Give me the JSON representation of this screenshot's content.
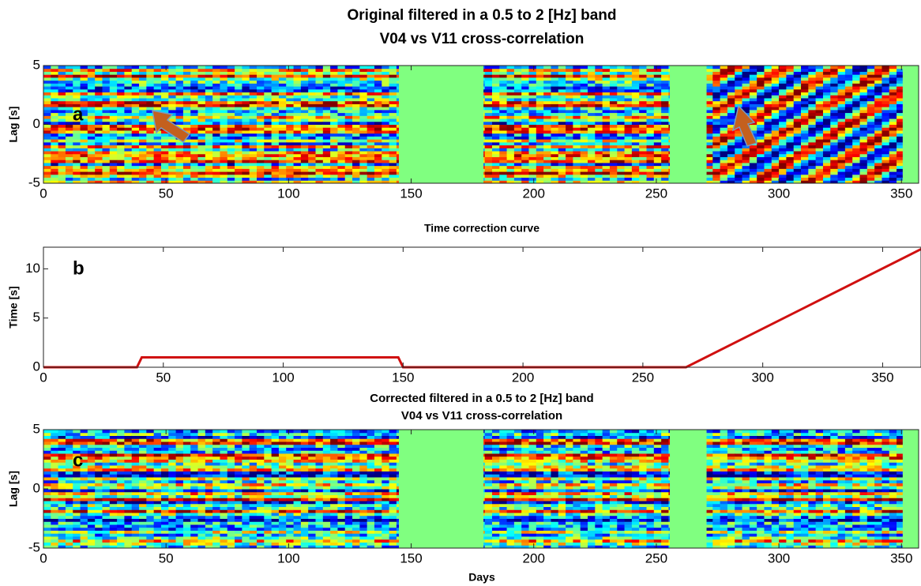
{
  "chart_data": [
    {
      "type": "heatmap",
      "title": [
        "Original filtered in a 0.5 to 2 [Hz] band",
        "V04 vs V11 cross-correlation"
      ],
      "ylabel": "Lag [s]",
      "panel_label": "a",
      "xlim": [
        0,
        357
      ],
      "xticks": [
        0,
        50,
        100,
        150,
        200,
        250,
        300,
        350
      ],
      "ylim": [
        -5,
        5
      ],
      "yticks": [
        -5,
        0,
        5
      ],
      "empty_ranges": [
        [
          145,
          179.5
        ],
        [
          255.5,
          270.5
        ],
        [
          350.5,
          357
        ]
      ]
    },
    {
      "type": "line",
      "title": "Time correction curve",
      "ylabel": "Time [s]",
      "panel_label": "b",
      "xlim": [
        0,
        366
      ],
      "xticks": [
        0,
        50,
        100,
        150,
        200,
        250,
        300,
        350
      ],
      "ylim": [
        0,
        12.2
      ],
      "yticks": [
        0,
        5,
        10
      ],
      "series": [
        {
          "x": [
            0,
            39,
            41,
            148,
            150,
            268,
            366
          ],
          "values": [
            0,
            0,
            1,
            1,
            0,
            0,
            12
          ],
          "color": "#d01010"
        }
      ]
    },
    {
      "type": "heatmap",
      "title": [
        "Corrected filtered in a 0.5 to 2 [Hz] band",
        "V04 vs V11 cross-correlation"
      ],
      "ylabel": "Lag [s]",
      "xlabel": "Days",
      "panel_label": "c",
      "xlim": [
        0,
        357
      ],
      "xticks": [
        0,
        50,
        100,
        150,
        200,
        250,
        300,
        350
      ],
      "ylim": [
        -5,
        5
      ],
      "yticks": [
        -5,
        0,
        5
      ],
      "empty_ranges": [
        [
          145,
          179.5
        ],
        [
          255.5,
          270.5
        ],
        [
          350.5,
          357
        ]
      ]
    }
  ]
}
